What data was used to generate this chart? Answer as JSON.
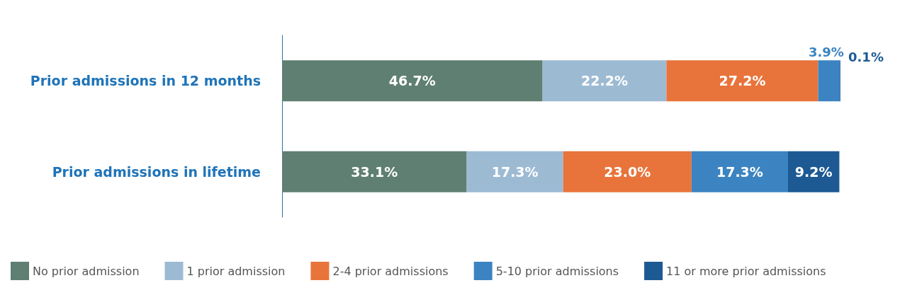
{
  "chart_data": {
    "type": "bar",
    "orientation": "horizontal",
    "stacked": true,
    "legend": "bottom",
    "grid": false,
    "categories": [
      "Prior admissions in 12 months",
      "Prior admissions in lifetime"
    ],
    "series": [
      {
        "name": "No prior admission",
        "color": "#5f7f72",
        "values": [
          46.7,
          33.1
        ],
        "value_labels": [
          "46.7%",
          "33.1%"
        ]
      },
      {
        "name": "1 prior admission",
        "color": "#9dbad3",
        "values": [
          22.2,
          17.3
        ],
        "value_labels": [
          "22.2%",
          "17.3%"
        ]
      },
      {
        "name": "2-4 prior admissions",
        "color": "#e8743b",
        "values": [
          27.2,
          23.0
        ],
        "value_labels": [
          "27.2%",
          "23.0%"
        ]
      },
      {
        "name": "5-10 prior admissions",
        "color": "#3b84c1",
        "values": [
          3.9,
          17.3
        ],
        "value_labels": [
          "3.9%",
          "17.3%"
        ]
      },
      {
        "name": "11 or more prior admissions",
        "color": "#1d5a94",
        "values": [
          0.1,
          9.2
        ],
        "value_labels": [
          "0.1%",
          "9.2%"
        ]
      }
    ]
  }
}
